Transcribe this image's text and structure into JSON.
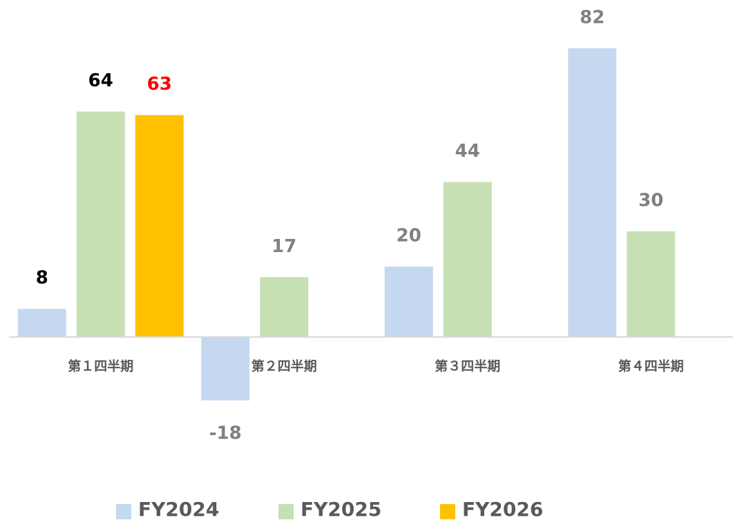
{
  "chart_data": {
    "type": "bar",
    "categories": [
      "第１四半期",
      "第２四半期",
      "第３四半期",
      "第４四半期"
    ],
    "series": [
      {
        "name": "FY2024",
        "color": "#c5d8f0",
        "values": [
          8,
          -18,
          20,
          82
        ],
        "label_colors": [
          "#000000",
          "#808080",
          "#808080",
          "#808080"
        ]
      },
      {
        "name": "FY2025",
        "color": "#c6e0b4",
        "values": [
          64,
          17,
          44,
          30
        ],
        "label_colors": [
          "#000000",
          "#808080",
          "#808080",
          "#808080"
        ]
      },
      {
        "name": "FY2026",
        "color": "#ffc000",
        "values": [
          63,
          null,
          null,
          null
        ],
        "label_colors": [
          "#ff0000",
          null,
          null,
          null
        ]
      }
    ],
    "ylim": [
      -30,
      90
    ]
  }
}
